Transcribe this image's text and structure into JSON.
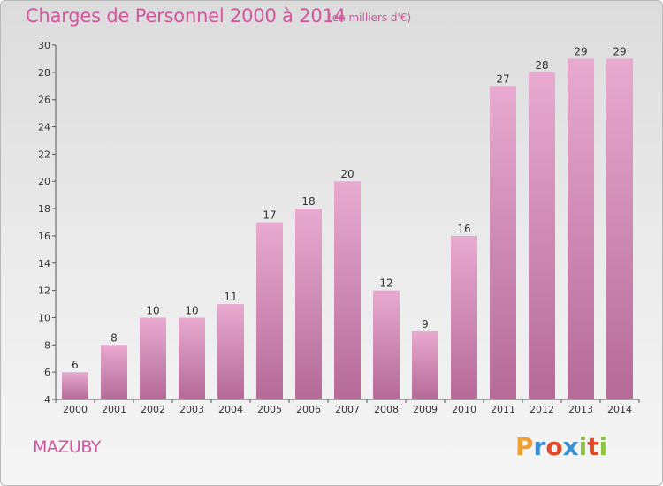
{
  "title": "Charges de Personnel 2000 à 2014",
  "subtitle": "(en milliers d'€)",
  "commune": "MAZUBY",
  "logo": {
    "letters": [
      "P",
      "r",
      "o",
      "x",
      "i",
      "t",
      "i"
    ],
    "colors": [
      "#f0a030",
      "#3a8fd0",
      "#e04a2a",
      "#3a8fd0",
      "#8cc63f",
      "#e04a2a",
      "#8cc63f"
    ]
  },
  "colors": {
    "title": "#d0569e",
    "bar_top": "#e8aad0",
    "bar_bottom": "#b56a98"
  },
  "chart_data": {
    "type": "bar",
    "title": "Charges de Personnel 2000 à 2014",
    "subtitle": "(en milliers d'€)",
    "categories": [
      "2000",
      "2001",
      "2002",
      "2003",
      "2004",
      "2005",
      "2006",
      "2007",
      "2008",
      "2009",
      "2010",
      "2011",
      "2012",
      "2013",
      "2014"
    ],
    "values": [
      6,
      8,
      10,
      10,
      11,
      17,
      18,
      20,
      12,
      9,
      16,
      27,
      28,
      29,
      29
    ],
    "ylim": [
      4,
      30
    ],
    "yticks": [
      4,
      6,
      8,
      10,
      12,
      14,
      16,
      18,
      20,
      22,
      24,
      26,
      28,
      30
    ],
    "grid": false,
    "data_labels": true
  }
}
